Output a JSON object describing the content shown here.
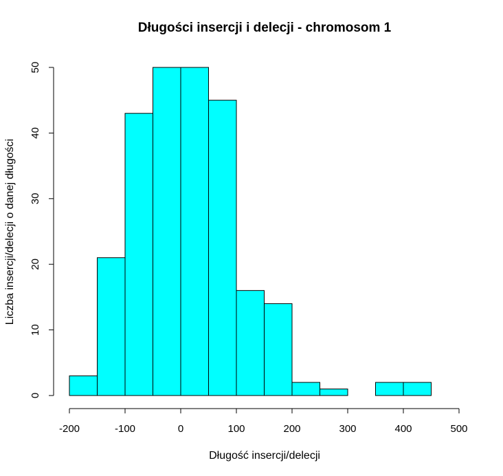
{
  "chart_data": {
    "type": "bar",
    "subtype": "histogram",
    "title": "Długości insercji i delecji - chromosom 1",
    "xlabel": "Długość insercji/delecji",
    "ylabel": "Liczba insercji/delecji o danej długości",
    "bins": [
      {
        "start": -200,
        "end": -150,
        "count": 3
      },
      {
        "start": -150,
        "end": -100,
        "count": 21
      },
      {
        "start": -100,
        "end": -50,
        "count": 43
      },
      {
        "start": -50,
        "end": 0,
        "count": 50
      },
      {
        "start": 0,
        "end": 50,
        "count": 50
      },
      {
        "start": 50,
        "end": 100,
        "count": 45
      },
      {
        "start": 100,
        "end": 150,
        "count": 16
      },
      {
        "start": 150,
        "end": 200,
        "count": 14
      },
      {
        "start": 200,
        "end": 250,
        "count": 2
      },
      {
        "start": 250,
        "end": 300,
        "count": 1
      },
      {
        "start": 300,
        "end": 350,
        "count": 0
      },
      {
        "start": 350,
        "end": 400,
        "count": 2
      },
      {
        "start": 400,
        "end": 450,
        "count": 2
      }
    ],
    "xlim": [
      -200,
      500
    ],
    "ylim": [
      0,
      50
    ],
    "x_ticks": [
      -200,
      -100,
      0,
      100,
      200,
      300,
      400,
      500
    ],
    "x_tick_labels": [
      "-200",
      "-100",
      "0",
      "100",
      "200",
      "300",
      "400",
      "500"
    ],
    "y_ticks": [
      0,
      10,
      20,
      30,
      40,
      50
    ],
    "y_tick_labels": [
      "0",
      "10",
      "20",
      "30",
      "40",
      "50"
    ],
    "bar_color": "#00ffff",
    "bar_border_color": "#000000",
    "grid": false
  }
}
